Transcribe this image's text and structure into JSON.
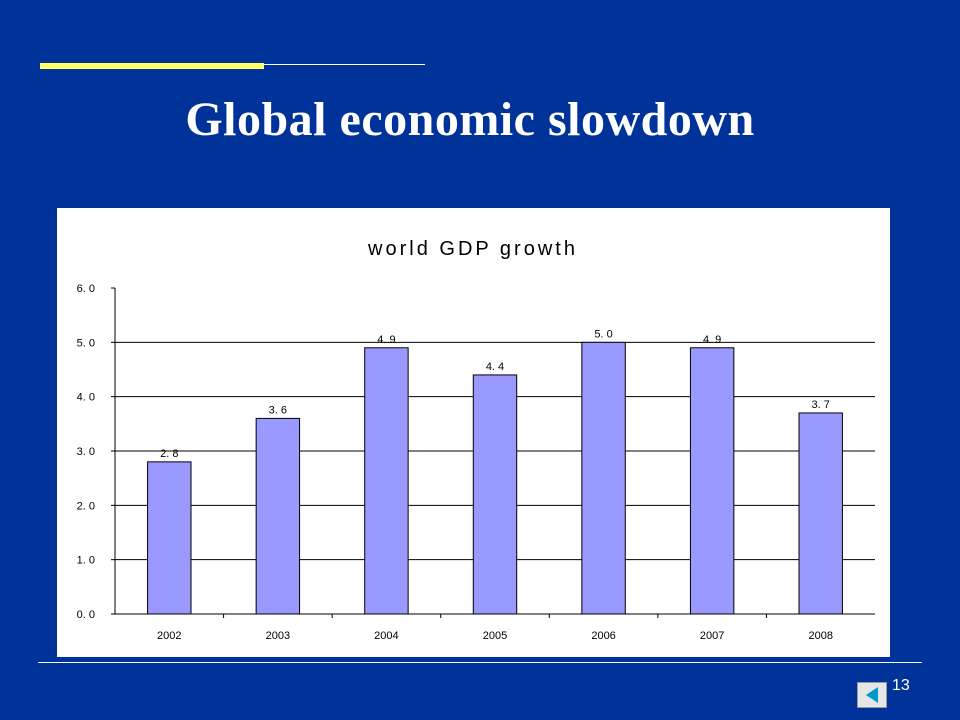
{
  "slide": {
    "title": "Global economic slowdown",
    "page_number": "13"
  },
  "colors": {
    "background": "#003399",
    "accent": "#ffff66",
    "bar_fill": "#9999ff",
    "nav_arrow": "#0099cc"
  },
  "chart_data": {
    "type": "bar",
    "title": "world GDP growth",
    "categories": [
      "2002",
      "2003",
      "2004",
      "2005",
      "2006",
      "2007",
      "2008"
    ],
    "values": [
      2.8,
      3.6,
      4.9,
      4.4,
      5.0,
      4.9,
      3.7
    ],
    "data_labels": [
      "2. 8",
      "3. 6",
      "4. 9",
      "4. 4",
      "5. 0",
      "4. 9",
      "3. 7"
    ],
    "yticks": [
      0,
      1,
      2,
      3,
      4,
      5,
      6
    ],
    "ytick_labels": [
      "0. 0",
      "1. 0",
      "2. 0",
      "3. 0",
      "4. 0",
      "5. 0",
      "6. 0"
    ],
    "ylim": [
      0,
      6
    ],
    "xlabel": "",
    "ylabel": "",
    "grid": true,
    "legend": false
  },
  "icons": {
    "nav_button": "left-arrow-icon"
  }
}
